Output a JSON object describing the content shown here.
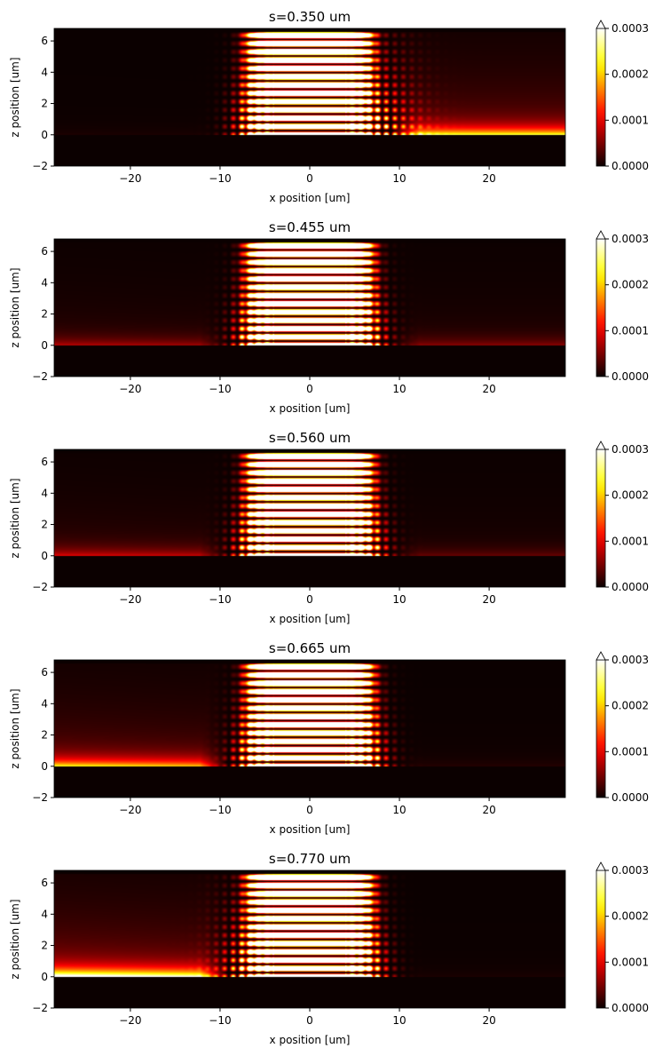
{
  "chart_data": [
    {
      "type": "heatmap",
      "title": "s=0.350 um",
      "xlabel": "x position [um]",
      "ylabel": "z position [um]",
      "xlim": [
        -28.5,
        28.5
      ],
      "ylim": [
        -2,
        6.8
      ],
      "xticks": [
        -20,
        -10,
        0,
        10,
        20
      ],
      "yticks": [
        -2,
        0,
        2,
        4,
        6
      ],
      "colormap": "hot",
      "colorbar": {
        "vmin": 0,
        "vmax": 0.0003,
        "extend": "max",
        "ticks": [
          "0.0000",
          "0.0001",
          "0.0002",
          "0.0003"
        ]
      },
      "leak_side": "right"
    },
    {
      "type": "heatmap",
      "title": "s=0.455 um",
      "xlabel": "x position [um]",
      "ylabel": "z position [um]",
      "xlim": [
        -28.5,
        28.5
      ],
      "ylim": [
        -2,
        6.8
      ],
      "xticks": [
        -20,
        -10,
        0,
        10,
        20
      ],
      "yticks": [
        -2,
        0,
        2,
        4,
        6
      ],
      "colormap": "hot",
      "colorbar": {
        "vmin": 0,
        "vmax": 0.0003,
        "extend": "max",
        "ticks": [
          "0.0000",
          "0.0001",
          "0.0002",
          "0.0003"
        ]
      },
      "leak_side": "both"
    },
    {
      "type": "heatmap",
      "title": "s=0.560 um",
      "xlabel": "x position [um]",
      "ylabel": "z position [um]",
      "xlim": [
        -28.5,
        28.5
      ],
      "ylim": [
        -2,
        6.8
      ],
      "xticks": [
        -20,
        -10,
        0,
        10,
        20
      ],
      "yticks": [
        -2,
        0,
        2,
        4,
        6
      ],
      "colormap": "hot",
      "colorbar": {
        "vmin": 0,
        "vmax": 0.0003,
        "extend": "max",
        "ticks": [
          "0.0000",
          "0.0001",
          "0.0002",
          "0.0003"
        ]
      },
      "leak_side": "both"
    },
    {
      "type": "heatmap",
      "title": "s=0.665 um",
      "xlabel": "x position [um]",
      "ylabel": "z position [um]",
      "xlim": [
        -28.5,
        28.5
      ],
      "ylim": [
        -2,
        6.8
      ],
      "xticks": [
        -20,
        -10,
        0,
        10,
        20
      ],
      "yticks": [
        -2,
        0,
        2,
        4,
        6
      ],
      "colormap": "hot",
      "colorbar": {
        "vmin": 0,
        "vmax": 0.0003,
        "extend": "max",
        "ticks": [
          "0.0000",
          "0.0001",
          "0.0002",
          "0.0003"
        ]
      },
      "leak_side": "left"
    },
    {
      "type": "heatmap",
      "title": "s=0.770 um",
      "xlabel": "x position [um]",
      "ylabel": "z position [um]",
      "xlim": [
        -28.5,
        28.5
      ],
      "ylim": [
        -2,
        6.8
      ],
      "xticks": [
        -20,
        -10,
        0,
        10,
        20
      ],
      "yticks": [
        -2,
        0,
        2,
        4,
        6
      ],
      "colormap": "hot",
      "colorbar": {
        "vmin": 0,
        "vmax": 0.0003,
        "extend": "max",
        "ticks": [
          "0.0000",
          "0.0001",
          "0.0002",
          "0.0003"
        ]
      },
      "leak_side": "left"
    }
  ]
}
